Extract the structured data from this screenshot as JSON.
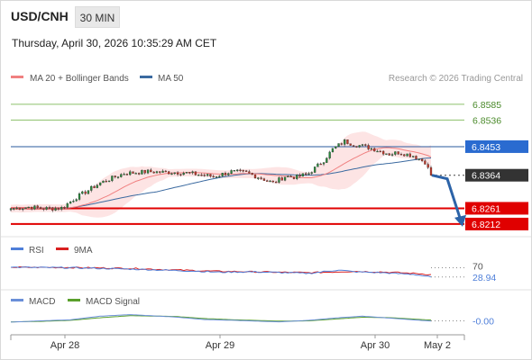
{
  "header": {
    "symbol": "USD/CNH",
    "timeframe": "30 MIN",
    "datetime": "Thursday, April 30, 2026 10:35:29 AM CET"
  },
  "legend": {
    "ma20_label": "MA 20 + Bollinger Bands",
    "ma50_label": "MA 50",
    "credit": "Research © 2026 Trading Central"
  },
  "colors": {
    "ma20": "#f08080",
    "bands": "#fde4e4",
    "ma50": "#3b6aa0",
    "resistance": "#8cc06a",
    "pivot": "#2a5a9e",
    "support": "#e00000",
    "current": "#333333",
    "arrow": "#2c63a8",
    "candle_up": "#2b8a3e",
    "candle_down": "#c0392b",
    "rsi": "#4f7fd9",
    "rsi_ma": "#d92020",
    "macd": "#6a8fd8",
    "macd_signal": "#5aa02c"
  },
  "price_levels": [
    {
      "value": 6.8585,
      "label": "6.8585",
      "kind": "resistance"
    },
    {
      "value": 6.8536,
      "label": "6.8536",
      "kind": "resistance"
    },
    {
      "value": 6.8453,
      "label": "6.8453",
      "kind": "pivot"
    },
    {
      "value": 6.8364,
      "label": "6.8364",
      "kind": "current"
    },
    {
      "value": 6.8261,
      "label": "6.8261",
      "kind": "support"
    },
    {
      "value": 6.8212,
      "label": "6.8212",
      "kind": "support"
    }
  ],
  "rsi_panel": {
    "rsi_label": "RSI",
    "ma_label": "9MA",
    "level_label": "70",
    "value_label": "28.94"
  },
  "macd_panel": {
    "macd_label": "MACD",
    "signal_label": "MACD Signal",
    "value_label": "-0.00"
  },
  "x_axis": {
    "labels": [
      "Apr 28",
      "Apr 29",
      "Apr 30",
      "May 2"
    ]
  },
  "chart_data": {
    "type": "candlestick",
    "ylim": [
      6.8195,
      6.8635
    ],
    "anchors": [
      [
        0,
        6.826
      ],
      [
        6,
        6.8265
      ],
      [
        12,
        6.826
      ],
      [
        17,
        6.8262
      ],
      [
        22,
        6.8295
      ],
      [
        30,
        6.834
      ],
      [
        38,
        6.837
      ],
      [
        46,
        6.8375
      ],
      [
        53,
        6.8373
      ],
      [
        58,
        6.8372
      ],
      [
        64,
        6.8365
      ],
      [
        68,
        6.836
      ],
      [
        74,
        6.8375
      ],
      [
        79,
        6.8372
      ],
      [
        84,
        6.8355
      ],
      [
        88,
        6.834
      ],
      [
        92,
        6.836
      ],
      [
        96,
        6.8358
      ],
      [
        100,
        6.837
      ],
      [
        105,
        6.841
      ],
      [
        108,
        6.8445
      ],
      [
        112,
        6.847
      ],
      [
        115,
        6.846
      ],
      [
        118,
        6.8455
      ],
      [
        122,
        6.8445
      ],
      [
        127,
        6.843
      ],
      [
        130,
        6.8435
      ],
      [
        135,
        6.8425
      ],
      [
        139,
        6.8405
      ],
      [
        141,
        6.8364
      ]
    ],
    "rsi_ylim": [
      0,
      100
    ],
    "rsi_anchors": [
      [
        0,
        72
      ],
      [
        20,
        70
      ],
      [
        40,
        64
      ],
      [
        60,
        56
      ],
      [
        70,
        50
      ],
      [
        80,
        52
      ],
      [
        90,
        49
      ],
      [
        100,
        45
      ],
      [
        110,
        60
      ],
      [
        115,
        52
      ],
      [
        125,
        48
      ],
      [
        130,
        44
      ],
      [
        135,
        41
      ],
      [
        141,
        28.94
      ]
    ],
    "rsi_ma_anchors": [
      [
        0,
        72
      ],
      [
        20,
        71
      ],
      [
        40,
        67
      ],
      [
        60,
        58
      ],
      [
        70,
        54
      ],
      [
        80,
        52
      ],
      [
        90,
        50
      ],
      [
        100,
        48
      ],
      [
        110,
        52
      ],
      [
        115,
        54
      ],
      [
        125,
        51
      ],
      [
        130,
        48
      ],
      [
        135,
        45
      ],
      [
        141,
        40
      ]
    ],
    "macd_ylim": [
      -0.004,
      0.004
    ],
    "macd_anchors": [
      [
        0,
        -0.0005
      ],
      [
        10,
        0.0
      ],
      [
        20,
        0.0004
      ],
      [
        30,
        0.0018
      ],
      [
        40,
        0.0024
      ],
      [
        55,
        0.0015
      ],
      [
        65,
        0.0005
      ],
      [
        75,
        0.0002
      ],
      [
        90,
        -0.0004
      ],
      [
        100,
        0.0002
      ],
      [
        110,
        0.0012
      ],
      [
        118,
        0.0018
      ],
      [
        128,
        0.001
      ],
      [
        135,
        0.0004
      ],
      [
        141,
        -0.0001
      ]
    ],
    "macd_signal_anchors": [
      [
        0,
        -0.0004
      ],
      [
        10,
        -0.0002
      ],
      [
        20,
        0.0002
      ],
      [
        30,
        0.0012
      ],
      [
        40,
        0.002
      ],
      [
        55,
        0.0017
      ],
      [
        65,
        0.0009
      ],
      [
        75,
        0.0004
      ],
      [
        90,
        -0.0001
      ],
      [
        100,
        0.0
      ],
      [
        110,
        0.0008
      ],
      [
        118,
        0.0014
      ],
      [
        128,
        0.0012
      ],
      [
        135,
        0.0007
      ],
      [
        141,
        0.0003
      ]
    ],
    "forecast_target": 6.8212
  }
}
